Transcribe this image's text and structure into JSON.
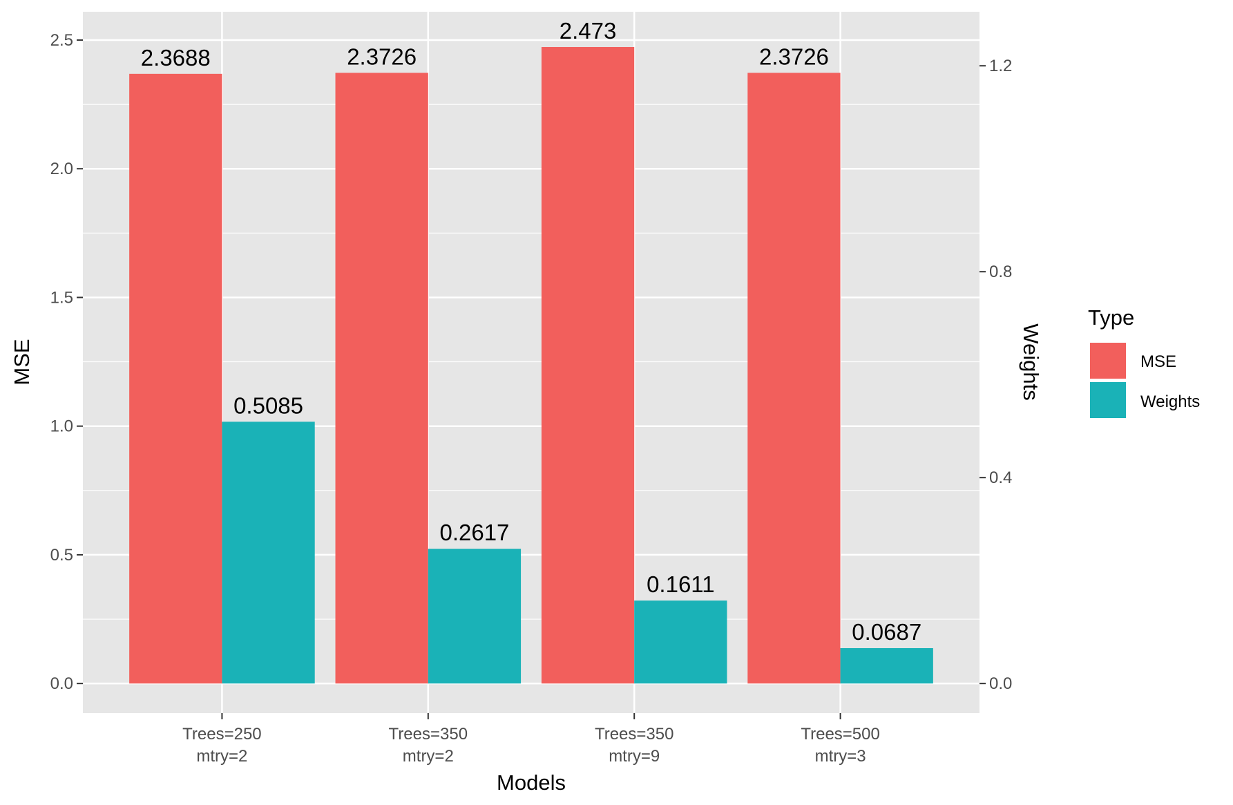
{
  "chart_data": {
    "type": "bar",
    "title": "",
    "xlabel": "Models",
    "ylabel": "MSE",
    "y2label": "Weights",
    "categories": [
      [
        "Trees=250",
        "mtry=2"
      ],
      [
        "Trees=350",
        "mtry=2"
      ],
      [
        "Trees=350",
        "mtry=9"
      ],
      [
        "Trees=500",
        "mtry=3"
      ]
    ],
    "series": [
      {
        "name": "MSE",
        "axis": "left",
        "values": [
          2.3688,
          2.3726,
          2.473,
          2.3726
        ],
        "labels": [
          "2.3688",
          "2.3726",
          "2.473",
          "2.3726"
        ],
        "color": "#F25F5C"
      },
      {
        "name": "Weights",
        "axis": "right",
        "values": [
          0.5085,
          0.2617,
          0.1611,
          0.0687
        ],
        "labels": [
          "0.5085",
          "0.2617",
          "0.1611",
          "0.0687"
        ],
        "color": "#1AB2B7"
      }
    ],
    "ylim": [
      -0.115,
      2.61
    ],
    "y2lim": [
      -0.0575,
      1.305
    ],
    "yticks": [
      0.0,
      0.5,
      1.0,
      1.5,
      2.0,
      2.5
    ],
    "ytick_labels": [
      "0.0",
      "0.5",
      "1.0",
      "1.5",
      "2.0",
      "2.5"
    ],
    "y2ticks": [
      0.0,
      0.4,
      0.8,
      1.2
    ],
    "y2tick_labels": [
      "0.0",
      "0.4",
      "0.8",
      "1.2"
    ],
    "grid": true,
    "panel_color": "#E6E6E6",
    "legend": {
      "title": "Type",
      "position": "right",
      "entries": [
        "MSE",
        "Weights"
      ]
    }
  }
}
